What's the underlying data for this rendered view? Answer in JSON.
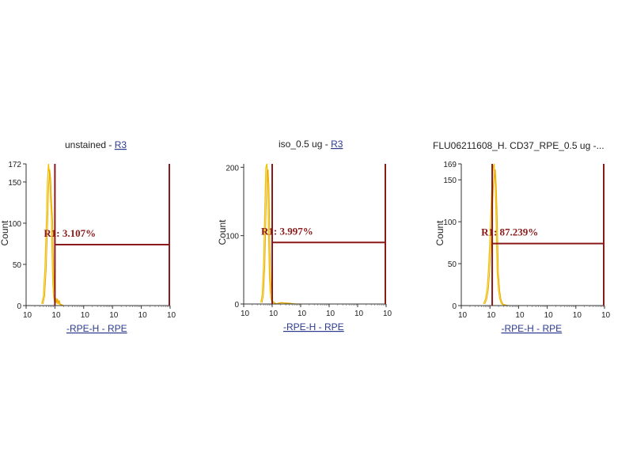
{
  "chart_data": [
    {
      "type": "histogram",
      "title": "unstained",
      "title_sep": " - ",
      "gate_link": "R3",
      "xlabel": "-RPE-H - RPE",
      "ylabel": "Count",
      "x_scale": "log",
      "xlim": [
        1,
        100000
      ],
      "x_ticks": [
        "10",
        "10",
        "10",
        "10",
        "10",
        "10"
      ],
      "ylim": [
        0,
        172
      ],
      "y_ticks": [
        "0",
        "50",
        "100",
        "150",
        "172"
      ],
      "region": {
        "name": "R1",
        "label": "R1: 3.107%",
        "x_start": 10,
        "x_end": 100000,
        "y": 74
      },
      "series": [
        {
          "color": "#f2c200",
          "x": [
            3.5,
            4.0,
            4.5,
            5.0,
            5.5,
            6.0,
            6.5,
            7.0,
            7.5,
            8.0,
            8.5,
            9.0,
            9.5,
            10.0,
            11,
            12,
            13,
            14,
            16,
            18,
            20
          ],
          "y": [
            2,
            12,
            45,
            95,
            150,
            172,
            160,
            130,
            110,
            60,
            25,
            12,
            6,
            4,
            8,
            3,
            6,
            2,
            1,
            0,
            0
          ]
        }
      ]
    },
    {
      "type": "histogram",
      "title": "iso_0.5 ug",
      "title_sep": " - ",
      "gate_link": "R3",
      "xlabel": "-RPE-H - RPE",
      "ylabel": "Count",
      "x_scale": "log",
      "xlim": [
        1,
        100000
      ],
      "x_ticks": [
        "10",
        "10",
        "10",
        "10",
        "10",
        "10"
      ],
      "ylim": [
        0,
        205
      ],
      "y_ticks": [
        "0",
        "100",
        "200"
      ],
      "region": {
        "name": "R1",
        "label": "R1: 3.997%",
        "x_start": 10,
        "x_end": 100000,
        "y": 90
      },
      "series": [
        {
          "color": "#f2c200",
          "x": [
            4.0,
            4.5,
            5.0,
            5.5,
            6.0,
            6.5,
            7.0,
            7.5,
            8.0,
            8.5,
            9.0,
            9.5,
            10.0,
            11,
            12,
            13,
            20,
            40,
            60,
            100
          ],
          "y": [
            2,
            15,
            60,
            140,
            200,
            205,
            180,
            100,
            40,
            18,
            8,
            5,
            3,
            2,
            1,
            0,
            2,
            1,
            0,
            0
          ]
        }
      ]
    },
    {
      "type": "histogram",
      "title": "FLU06211608_H. CD37_RPE_0.5 ug -...",
      "title_sep": "",
      "gate_link": "",
      "xlabel": "-RPE-H - RPE",
      "ylabel": "Count",
      "x_scale": "log",
      "xlim": [
        1,
        100000
      ],
      "x_ticks": [
        "10",
        "10",
        "10",
        "10",
        "10",
        "10"
      ],
      "ylim": [
        0,
        169
      ],
      "y_ticks": [
        "0",
        "50",
        "100",
        "150",
        "169"
      ],
      "region": {
        "name": "R1",
        "label": "R1: 87.239%",
        "x_start": 12,
        "x_end": 100000,
        "y": 74
      },
      "series": [
        {
          "color": "#f2c200",
          "x": [
            6,
            7,
            8,
            9,
            10,
            11,
            12,
            13,
            14,
            15,
            16,
            17,
            18,
            20,
            22,
            24,
            26,
            30,
            40
          ],
          "y": [
            2,
            8,
            20,
            45,
            80,
            120,
            150,
            165,
            169,
            150,
            120,
            80,
            40,
            18,
            8,
            4,
            2,
            1,
            0
          ]
        }
      ]
    }
  ]
}
